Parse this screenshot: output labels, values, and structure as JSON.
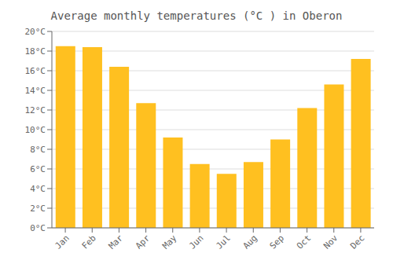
{
  "chart_data": {
    "type": "bar",
    "title": "Average monthly temperatures (°C ) in Oberon",
    "categories": [
      "Jan",
      "Feb",
      "Mar",
      "Apr",
      "May",
      "Jun",
      "Jul",
      "Aug",
      "Sep",
      "Oct",
      "Nov",
      "Dec"
    ],
    "values": [
      18.5,
      18.4,
      16.4,
      12.7,
      9.2,
      6.5,
      5.5,
      6.7,
      9.0,
      12.2,
      14.6,
      17.2
    ],
    "color": "#FFC020",
    "ylim": [
      0,
      20
    ],
    "yticks": [
      {
        "value": 0,
        "label": "0°C"
      },
      {
        "value": 2,
        "label": "2°C"
      },
      {
        "value": 4,
        "label": "4°C"
      },
      {
        "value": 6,
        "label": "6°C"
      },
      {
        "value": 8,
        "label": "8°C"
      },
      {
        "value": 10,
        "label": "10°C"
      },
      {
        "value": 12,
        "label": "12°C"
      },
      {
        "value": 14,
        "label": "14°C"
      },
      {
        "value": 16,
        "label": "16°C"
      },
      {
        "value": 18,
        "label": "18°C"
      },
      {
        "value": 20,
        "label": "20°C"
      }
    ],
    "grid": true
  }
}
